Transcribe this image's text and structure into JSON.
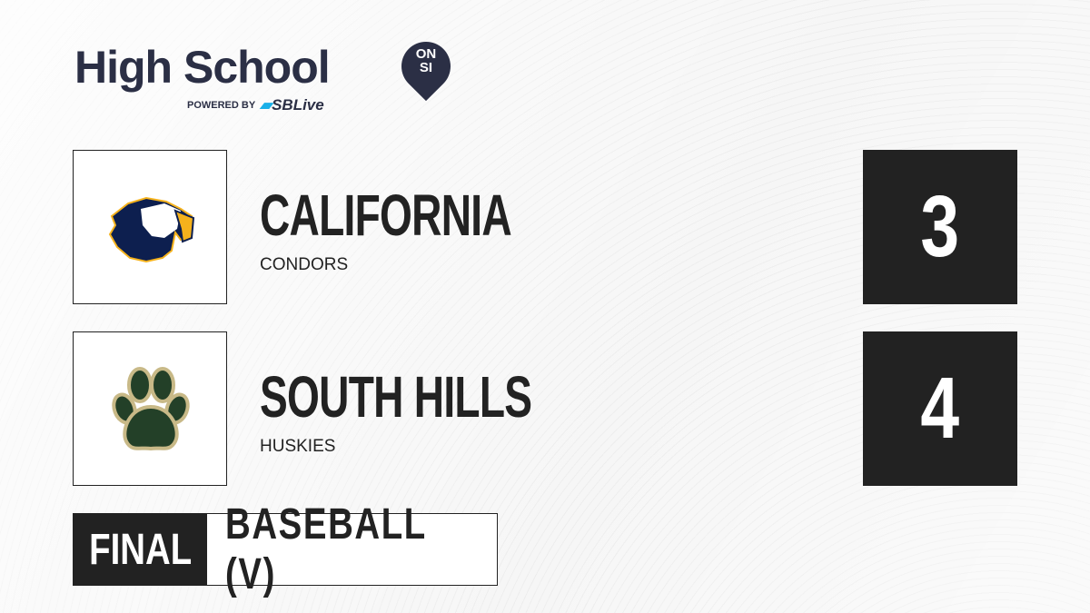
{
  "brand": {
    "title": "High School",
    "badge_line1": "ON",
    "badge_line2": "SI",
    "powered_by": "POWERED BY",
    "partner": "SBLive"
  },
  "teams": [
    {
      "name": "CALIFORNIA",
      "mascot": "CONDORS",
      "score": "3",
      "logo": "condor-logo",
      "colors": [
        "#0d1f4f",
        "#f5b21c"
      ]
    },
    {
      "name": "SOUTH HILLS",
      "mascot": "HUSKIES",
      "score": "4",
      "logo": "paw-logo",
      "colors": [
        "#234028",
        "#c8b987"
      ]
    }
  ],
  "game": {
    "status": "FINAL",
    "sport": "BASEBALL (V)"
  }
}
